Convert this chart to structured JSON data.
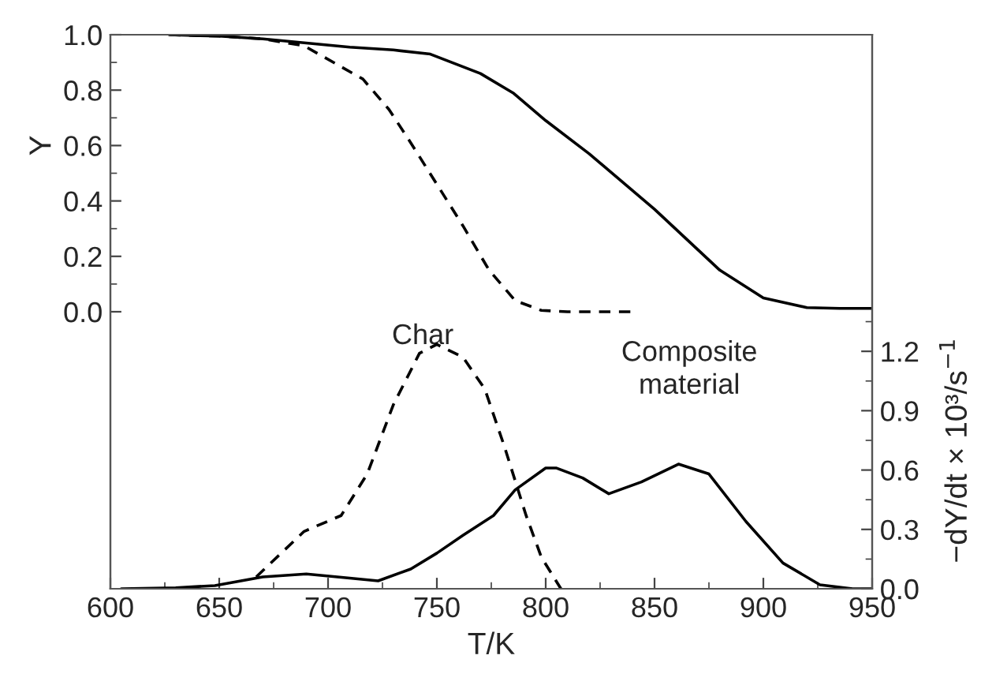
{
  "chart_data": {
    "type": "line",
    "xlabel": "T/K",
    "ylabel": "Y",
    "y2label": "−dY/dt × 10³/s$^{−1}$",
    "xlim": [
      600,
      950
    ],
    "xticks": [
      600,
      650,
      700,
      750,
      800,
      850,
      900,
      950
    ],
    "ylim": [
      -1.0,
      1.0
    ],
    "yticks": [
      {
        "value": 0,
        "label": "0.0"
      },
      0.2,
      0.4,
      0.6,
      0.8,
      {
        "value": 1,
        "label": "1.0"
      }
    ],
    "y2lim": [
      0,
      2.8
    ],
    "y2ticks": [
      {
        "value": 0,
        "label": "0.0"
      },
      0.3,
      0.6,
      0.9,
      1.2
    ],
    "grid": false,
    "series": [
      {
        "color": "#000000",
        "line_style": "solid",
        "x": [
          627,
          650,
          670,
          690,
          710,
          730,
          747,
          770,
          785,
          800,
          820,
          850,
          880,
          900,
          920,
          935,
          950
        ],
        "values": [
          1.0,
          0.995,
          0.985,
          0.97,
          0.955,
          0.945,
          0.93,
          0.86,
          0.79,
          0.69,
          0.57,
          0.37,
          0.15,
          0.05,
          0.015,
          0.012,
          0.012
        ]
      },
      {
        "color": "#000000",
        "line_style": "dashed",
        "x": [
          627,
          650,
          670,
          689,
          716,
          728,
          738,
          750,
          762,
          774,
          786,
          798,
          810,
          839
        ],
        "values": [
          1.0,
          0.995,
          0.985,
          0.96,
          0.84,
          0.73,
          0.61,
          0.46,
          0.31,
          0.15,
          0.04,
          0.005,
          0.0,
          0.0
        ]
      },
      {
        "color": "#000000",
        "line_style": "solid",
        "axis": "y2",
        "x": [
          605,
          630,
          648,
          670,
          690,
          709,
          723,
          738,
          750,
          762,
          776,
          786,
          800,
          805,
          817,
          829,
          844,
          861,
          875,
          892,
          909,
          926,
          941,
          950
        ],
        "values": [
          0.0,
          0.005,
          0.016,
          0.06,
          0.075,
          0.055,
          0.04,
          0.1,
          0.18,
          0.27,
          0.37,
          0.5,
          0.61,
          0.61,
          0.56,
          0.48,
          0.54,
          0.63,
          0.58,
          0.34,
          0.13,
          0.02,
          0.0,
          0.0
        ]
      },
      {
        "color": "#000000",
        "line_style": "dashed",
        "axis": "y2",
        "x": [
          667,
          689,
          706,
          718,
          730,
          742,
          750,
          762,
          772,
          781,
          791,
          798,
          807
        ],
        "values": [
          0.06,
          0.29,
          0.37,
          0.58,
          0.93,
          1.19,
          1.235,
          1.17,
          1.01,
          0.72,
          0.37,
          0.16,
          0.0
        ]
      }
    ],
    "annotations": [
      "Char",
      "Composite\nmaterial"
    ]
  }
}
